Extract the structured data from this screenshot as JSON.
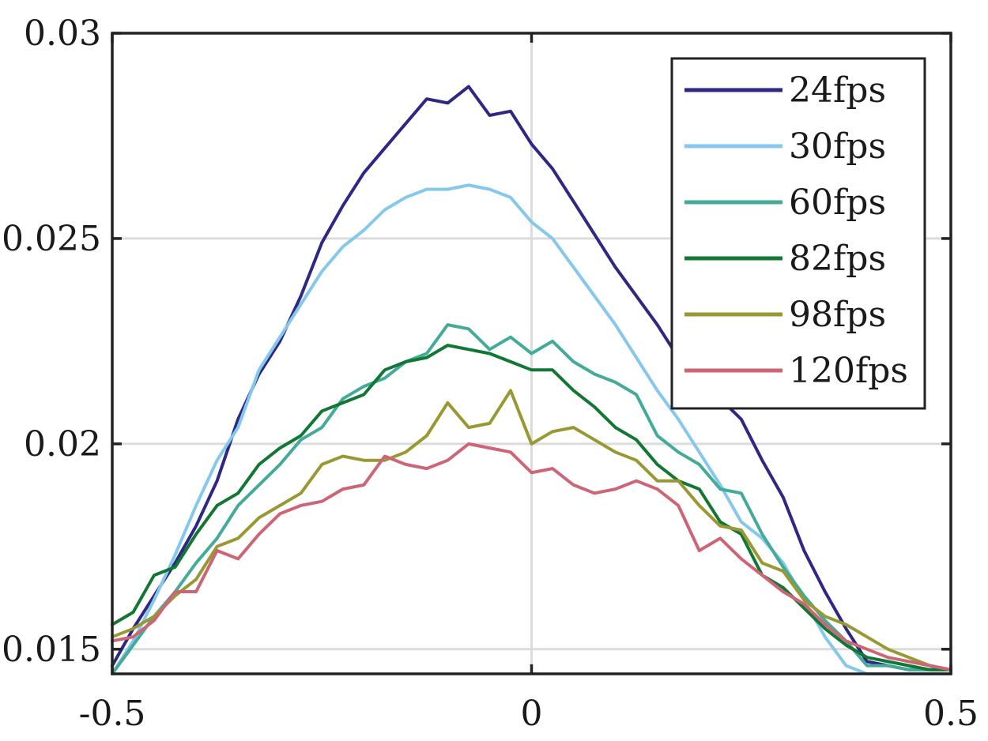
{
  "chart_data": {
    "type": "line",
    "title": "",
    "xlabel": "",
    "ylabel": "",
    "xlim": [
      -0.5,
      0.5
    ],
    "ylim": [
      0.0144,
      0.03
    ],
    "grid": true,
    "legend_position": "top-right",
    "x_ticks": [
      -0.5,
      0,
      0.5
    ],
    "x_tick_labels": [
      "-0.5",
      "0",
      "0.5"
    ],
    "y_ticks": [
      0.015,
      0.02,
      0.025,
      0.03
    ],
    "y_tick_labels": [
      "0.015",
      "0.02",
      "0.025",
      "0.03"
    ],
    "x": [
      -0.5,
      -0.475,
      -0.45,
      -0.425,
      -0.4,
      -0.375,
      -0.35,
      -0.325,
      -0.3,
      -0.275,
      -0.25,
      -0.225,
      -0.2,
      -0.175,
      -0.15,
      -0.125,
      -0.1,
      -0.075,
      -0.05,
      -0.025,
      0,
      0.025,
      0.05,
      0.075,
      0.1,
      0.125,
      0.15,
      0.175,
      0.2,
      0.225,
      0.25,
      0.275,
      0.3,
      0.325,
      0.35,
      0.375,
      0.4,
      0.425,
      0.45,
      0.475,
      0.5
    ],
    "series": [
      {
        "name": "24fps",
        "color": "#2e2783",
        "values": [
          0.0146,
          0.0155,
          0.0163,
          0.0171,
          0.018,
          0.0191,
          0.0206,
          0.0217,
          0.0225,
          0.0236,
          0.0249,
          0.0258,
          0.0266,
          0.0272,
          0.0278,
          0.0284,
          0.0283,
          0.0287,
          0.028,
          0.0281,
          0.0273,
          0.0267,
          0.0259,
          0.0251,
          0.0243,
          0.0236,
          0.0229,
          0.0221,
          0.0216,
          0.0211,
          0.0206,
          0.0196,
          0.0187,
          0.0174,
          0.0164,
          0.0155,
          0.0147,
          0.0146,
          0.0145,
          0.0145,
          0.0145
        ]
      },
      {
        "name": "30fps",
        "color": "#85c8ec",
        "values": [
          0.0144,
          0.0152,
          0.0162,
          0.0173,
          0.0185,
          0.0196,
          0.0204,
          0.0218,
          0.0226,
          0.0234,
          0.0242,
          0.0248,
          0.0252,
          0.0257,
          0.026,
          0.0262,
          0.0262,
          0.0263,
          0.0262,
          0.026,
          0.0254,
          0.025,
          0.0243,
          0.0236,
          0.0229,
          0.0221,
          0.0213,
          0.0206,
          0.0198,
          0.019,
          0.0181,
          0.0177,
          0.0171,
          0.0162,
          0.0153,
          0.0146,
          0.0144,
          0.0144,
          0.0144,
          0.0144,
          0.0144
        ]
      },
      {
        "name": "60fps",
        "color": "#44aa99",
        "values": [
          0.0144,
          0.0151,
          0.0158,
          0.0164,
          0.0171,
          0.0177,
          0.0185,
          0.019,
          0.0195,
          0.0201,
          0.0204,
          0.0211,
          0.0214,
          0.0216,
          0.022,
          0.0222,
          0.0229,
          0.0228,
          0.0223,
          0.0226,
          0.0222,
          0.0225,
          0.022,
          0.0217,
          0.0215,
          0.0212,
          0.0202,
          0.0198,
          0.0195,
          0.0189,
          0.0188,
          0.0178,
          0.017,
          0.0163,
          0.0157,
          0.0152,
          0.0146,
          0.0146,
          0.0145,
          0.0145,
          0.0145
        ]
      },
      {
        "name": "82fps",
        "color": "#117733",
        "values": [
          0.0156,
          0.0159,
          0.0168,
          0.017,
          0.0178,
          0.0185,
          0.0188,
          0.0195,
          0.0199,
          0.0202,
          0.0208,
          0.021,
          0.0212,
          0.0218,
          0.022,
          0.0221,
          0.0224,
          0.0223,
          0.0222,
          0.022,
          0.0218,
          0.0218,
          0.0213,
          0.0209,
          0.0204,
          0.0201,
          0.0195,
          0.0191,
          0.0189,
          0.0181,
          0.0178,
          0.0168,
          0.0165,
          0.016,
          0.0155,
          0.0151,
          0.0148,
          0.0147,
          0.0146,
          0.0145,
          0.0145
        ]
      },
      {
        "name": "98fps",
        "color": "#999933",
        "values": [
          0.0153,
          0.0155,
          0.0158,
          0.0163,
          0.0167,
          0.0175,
          0.0177,
          0.0182,
          0.0185,
          0.0188,
          0.0195,
          0.0197,
          0.0196,
          0.0196,
          0.0198,
          0.0202,
          0.021,
          0.0204,
          0.0205,
          0.0213,
          0.02,
          0.0203,
          0.0204,
          0.0201,
          0.0198,
          0.0196,
          0.0191,
          0.0191,
          0.0185,
          0.018,
          0.0179,
          0.0171,
          0.0169,
          0.0162,
          0.0158,
          0.0156,
          0.0153,
          0.015,
          0.0148,
          0.0146,
          0.0145
        ]
      },
      {
        "name": "120fps",
        "color": "#cc6677",
        "values": [
          0.0152,
          0.0153,
          0.0157,
          0.0164,
          0.0164,
          0.0174,
          0.0172,
          0.0178,
          0.0183,
          0.0185,
          0.0186,
          0.0189,
          0.019,
          0.0197,
          0.0195,
          0.0194,
          0.0196,
          0.02,
          0.0199,
          0.0198,
          0.0193,
          0.0194,
          0.019,
          0.0188,
          0.0189,
          0.0191,
          0.0189,
          0.0185,
          0.0174,
          0.0177,
          0.0172,
          0.0168,
          0.0164,
          0.0161,
          0.0156,
          0.0152,
          0.015,
          0.0148,
          0.0147,
          0.0146,
          0.0145
        ]
      }
    ]
  }
}
